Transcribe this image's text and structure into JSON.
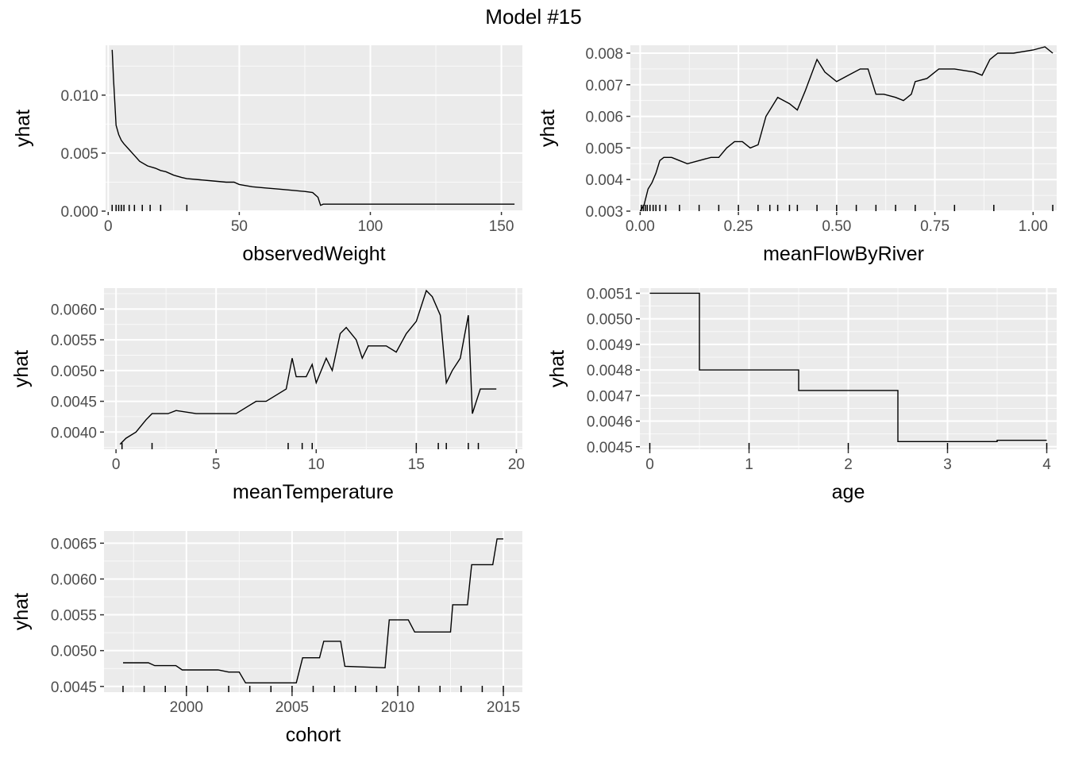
{
  "title": "Model #15",
  "chart_data": [
    {
      "type": "line",
      "xlabel": "observedWeight",
      "ylabel": "yhat",
      "xlim": [
        -1,
        158
      ],
      "ylim": [
        0.0,
        0.0143
      ],
      "xticks": [
        0,
        50,
        100,
        150
      ],
      "xtick_labels": [
        "0",
        "50",
        "100",
        "150"
      ],
      "yticks": [
        0.0,
        0.005,
        0.01
      ],
      "ytick_labels": [
        "0.000",
        "0.005",
        "0.010"
      ],
      "rug": [
        1.5,
        3,
        4,
        5,
        6,
        8,
        10,
        13,
        16,
        20,
        30
      ],
      "x": [
        1.5,
        2,
        3,
        4,
        5,
        6,
        8,
        10,
        12,
        15,
        18,
        20,
        22,
        25,
        28,
        30,
        35,
        40,
        45,
        48,
        50,
        55,
        60,
        65,
        70,
        75,
        78,
        80,
        81,
        82,
        85,
        100,
        120,
        140,
        155
      ],
      "y": [
        0.0139,
        0.0115,
        0.0074,
        0.0066,
        0.0061,
        0.0058,
        0.0053,
        0.0048,
        0.0043,
        0.0039,
        0.0037,
        0.0035,
        0.0034,
        0.0031,
        0.0029,
        0.0028,
        0.0027,
        0.0026,
        0.0025,
        0.0025,
        0.0023,
        0.0021,
        0.002,
        0.0019,
        0.0018,
        0.0017,
        0.0016,
        0.0012,
        0.0005,
        0.0006,
        0.0006,
        0.0006,
        0.0006,
        0.0006,
        0.0006
      ]
    },
    {
      "type": "line",
      "xlabel": "meanFlowByRiver",
      "ylabel": "yhat",
      "xlim": [
        -0.025,
        1.06
      ],
      "ylim": [
        0.003,
        0.00825
      ],
      "xticks": [
        0.0,
        0.25,
        0.5,
        0.75,
        1.0
      ],
      "xtick_labels": [
        "0.00",
        "0.25",
        "0.50",
        "0.75",
        "1.00"
      ],
      "yticks": [
        0.003,
        0.004,
        0.005,
        0.006,
        0.007,
        0.008
      ],
      "ytick_labels": [
        "0.003",
        "0.004",
        "0.005",
        "0.006",
        "0.007",
        "0.008"
      ],
      "rug": [
        0.003,
        0.008,
        0.013,
        0.018,
        0.025,
        0.033,
        0.04,
        0.05,
        0.065,
        0.1,
        0.15,
        0.2,
        0.25,
        0.3,
        0.33,
        0.35,
        0.38,
        0.4,
        0.45,
        0.5,
        0.55,
        0.6,
        0.65,
        0.7,
        0.8,
        0.9,
        1.05
      ],
      "x": [
        0.0,
        0.01,
        0.02,
        0.03,
        0.04,
        0.05,
        0.06,
        0.08,
        0.1,
        0.12,
        0.15,
        0.18,
        0.2,
        0.22,
        0.24,
        0.26,
        0.28,
        0.3,
        0.32,
        0.35,
        0.38,
        0.4,
        0.42,
        0.45,
        0.47,
        0.5,
        0.53,
        0.56,
        0.58,
        0.6,
        0.62,
        0.65,
        0.67,
        0.69,
        0.7,
        0.73,
        0.76,
        0.8,
        0.85,
        0.87,
        0.89,
        0.91,
        0.95,
        1.0,
        1.03,
        1.05
      ],
      "y": [
        0.003,
        0.0032,
        0.0037,
        0.0039,
        0.0042,
        0.0046,
        0.0047,
        0.0047,
        0.0046,
        0.0045,
        0.0046,
        0.0047,
        0.0047,
        0.005,
        0.0052,
        0.0052,
        0.005,
        0.0051,
        0.006,
        0.0066,
        0.0064,
        0.0062,
        0.0068,
        0.0078,
        0.0074,
        0.0071,
        0.0073,
        0.0075,
        0.0075,
        0.0067,
        0.0067,
        0.0066,
        0.0065,
        0.0067,
        0.0071,
        0.0072,
        0.0075,
        0.0075,
        0.0074,
        0.0073,
        0.0078,
        0.008,
        0.008,
        0.0081,
        0.0082,
        0.008
      ]
    },
    {
      "type": "line",
      "xlabel": "meanTemperature",
      "ylabel": "yhat",
      "xlim": [
        -0.6,
        20.3
      ],
      "ylim": [
        0.00372,
        0.00634
      ],
      "xticks": [
        0,
        5,
        10,
        15,
        20
      ],
      "xtick_labels": [
        "0",
        "5",
        "10",
        "15",
        "20"
      ],
      "yticks": [
        0.004,
        0.0045,
        0.005,
        0.0055,
        0.006
      ],
      "ytick_labels": [
        "0.0040",
        "0.0045",
        "0.0050",
        "0.0055",
        "0.0060"
      ],
      "rug": [
        0.3,
        1.8,
        8.6,
        9.3,
        9.8,
        15.0,
        16.1,
        16.5,
        17.6,
        18.1
      ],
      "x": [
        0.2,
        0.5,
        1.0,
        1.5,
        1.8,
        2.2,
        2.6,
        3.0,
        4.0,
        5.0,
        6.0,
        6.5,
        7.0,
        7.5,
        8.0,
        8.5,
        8.8,
        9.0,
        9.5,
        9.8,
        10.0,
        10.5,
        10.8,
        11.2,
        11.5,
        12.0,
        12.3,
        12.6,
        13.0,
        13.5,
        14.0,
        14.5,
        15.0,
        15.5,
        15.8,
        16.2,
        16.5,
        16.8,
        17.2,
        17.6,
        17.8,
        18.2,
        19.0
      ],
      "y": [
        0.0038,
        0.0039,
        0.004,
        0.0042,
        0.0043,
        0.0043,
        0.0043,
        0.00435,
        0.0043,
        0.0043,
        0.0043,
        0.0044,
        0.0045,
        0.0045,
        0.0046,
        0.0047,
        0.0052,
        0.0049,
        0.0049,
        0.0051,
        0.0048,
        0.0052,
        0.005,
        0.0056,
        0.0057,
        0.0055,
        0.0052,
        0.0054,
        0.0054,
        0.0054,
        0.0053,
        0.0056,
        0.0058,
        0.0063,
        0.0062,
        0.0059,
        0.0048,
        0.005,
        0.0052,
        0.0059,
        0.0043,
        0.0047,
        0.0047
      ]
    },
    {
      "type": "line",
      "xlabel": "age",
      "ylabel": "yhat",
      "xlim": [
        -0.1,
        4.1
      ],
      "ylim": [
        0.00449,
        0.00512
      ],
      "xticks": [
        0,
        1,
        2,
        3,
        4
      ],
      "xtick_labels": [
        "0",
        "1",
        "2",
        "3",
        "4"
      ],
      "yticks": [
        0.0045,
        0.0046,
        0.0047,
        0.0048,
        0.0049,
        0.005,
        0.0051
      ],
      "ytick_labels": [
        "0.0045",
        "0.0046",
        "0.0047",
        "0.0048",
        "0.0049",
        "0.0050",
        "0.0051"
      ],
      "rug": [
        0,
        1,
        2,
        3,
        4
      ],
      "x": [
        0,
        0.5,
        0.5,
        1.5,
        1.5,
        2.5,
        2.5,
        3.5,
        3.5,
        4.0
      ],
      "y": [
        0.0051,
        0.0051,
        0.0048,
        0.0048,
        0.00472,
        0.00472,
        0.00452,
        0.00452,
        0.004525,
        0.004525
      ]
    },
    {
      "type": "line",
      "xlabel": "cohort",
      "ylabel": "yhat",
      "xlim": [
        1996.1,
        2015.9
      ],
      "ylim": [
        0.00442,
        0.00667
      ],
      "xticks": [
        2000,
        2005,
        2010,
        2015
      ],
      "xtick_labels": [
        "2000",
        "2005",
        "2010",
        "2015"
      ],
      "yticks": [
        0.0045,
        0.005,
        0.0055,
        0.006,
        0.0065
      ],
      "ytick_labels": [
        "0.0045",
        "0.0050",
        "0.0055",
        "0.0060",
        "0.0065"
      ],
      "rug": [
        1997,
        1998,
        1999,
        2000,
        2001,
        2002,
        2003,
        2004,
        2005,
        2006,
        2007,
        2008,
        2009,
        2010,
        2011,
        2012,
        2013,
        2014,
        2015
      ],
      "x": [
        1997,
        1998.2,
        1998.5,
        1999.5,
        1999.8,
        2001.5,
        2002,
        2002.5,
        2002.8,
        2005.2,
        2005.5,
        2006.3,
        2006.5,
        2007.3,
        2007.5,
        2009.4,
        2009.6,
        2010.5,
        2010.8,
        2012.5,
        2012.6,
        2013.3,
        2013.5,
        2014.5,
        2014.7,
        2015
      ],
      "y": [
        0.00483,
        0.00483,
        0.00479,
        0.00479,
        0.00473,
        0.00473,
        0.0047,
        0.0047,
        0.00455,
        0.00455,
        0.0049,
        0.0049,
        0.00513,
        0.00513,
        0.00478,
        0.00476,
        0.00543,
        0.00543,
        0.00526,
        0.00526,
        0.00564,
        0.00564,
        0.0062,
        0.0062,
        0.00656,
        0.00656
      ]
    }
  ]
}
